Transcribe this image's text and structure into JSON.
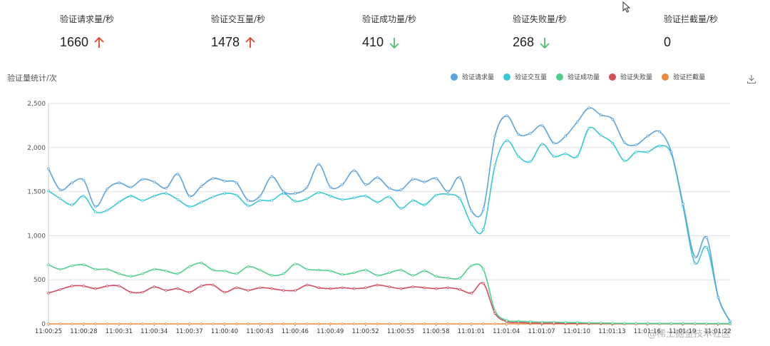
{
  "stats": [
    {
      "label": "验证请求量/秒",
      "value": "1660",
      "trend": "up"
    },
    {
      "label": "验证交互量/秒",
      "value": "1478",
      "trend": "up"
    },
    {
      "label": "验证成功量/秒",
      "value": "410",
      "trend": "down"
    },
    {
      "label": "验证失败量/秒",
      "value": "268",
      "trend": "down"
    },
    {
      "label": "验证拦截量/秒",
      "value": "0",
      "trend": "none"
    }
  ],
  "colors": {
    "up": "#e0452b",
    "down": "#4cc26a"
  },
  "icons": {
    "download": "download-icon",
    "cursor": "cursor-icon",
    "up": "arrow-up-icon",
    "down": "arrow-down-icon"
  },
  "watermark": "@稀土掘金技术社区",
  "chart_data": {
    "type": "line",
    "title": "验证量统计/次",
    "ylim": [
      0,
      2500
    ],
    "yticks": [
      "0",
      "500",
      "1,000",
      "1,500",
      "2,000",
      "2,500"
    ],
    "grid": true,
    "legend_position": "top-right",
    "xticks": [
      "11:00:25",
      "11:00:28",
      "11:00:31",
      "11:00:34",
      "11:00:37",
      "11:00:40",
      "11:00:43",
      "11:00:46",
      "11:00:49",
      "11:00:52",
      "11:00:55",
      "11:00:58",
      "11:01:01",
      "11:01:04",
      "11:01:07",
      "11:01:10",
      "11:01:13",
      "11:01:16",
      "11:01:19",
      "11:01:22"
    ],
    "x_start": "11:00:25",
    "x_end": "11:01:22",
    "series": [
      {
        "name": "验证请求量",
        "color": "#5ba4e0",
        "values": [
          1760,
          1520,
          1600,
          1630,
          1330,
          1530,
          1600,
          1550,
          1640,
          1610,
          1540,
          1700,
          1450,
          1560,
          1650,
          1620,
          1600,
          1400,
          1450,
          1670,
          1500,
          1480,
          1550,
          1810,
          1550,
          1580,
          1740,
          1580,
          1660,
          1540,
          1520,
          1640,
          1610,
          1650,
          1500,
          1660,
          1280,
          1300,
          2130,
          2360,
          2150,
          2160,
          2250,
          2050,
          2130,
          2290,
          2450,
          2370,
          2320,
          2060,
          2030,
          2130,
          2180,
          1950,
          1360,
          760,
          980,
          300,
          30
        ]
      },
      {
        "name": "验证交互量",
        "color": "#36c8d6",
        "values": [
          1510,
          1420,
          1350,
          1450,
          1270,
          1290,
          1380,
          1450,
          1400,
          1450,
          1480,
          1410,
          1330,
          1380,
          1440,
          1480,
          1460,
          1340,
          1400,
          1400,
          1480,
          1390,
          1420,
          1490,
          1450,
          1410,
          1430,
          1450,
          1380,
          1440,
          1310,
          1400,
          1350,
          1460,
          1470,
          1420,
          1130,
          1070,
          1800,
          2080,
          1900,
          1840,
          2040,
          1900,
          1930,
          1900,
          2220,
          2140,
          2050,
          1850,
          1950,
          1950,
          2020,
          1930,
          1330,
          690,
          870,
          300,
          20
        ]
      },
      {
        "name": "验证成功量",
        "color": "#4fcf8c",
        "values": [
          670,
          620,
          660,
          670,
          620,
          620,
          570,
          540,
          570,
          620,
          600,
          570,
          650,
          690,
          610,
          600,
          570,
          650,
          610,
          550,
          570,
          680,
          620,
          610,
          600,
          560,
          580,
          610,
          550,
          580,
          610,
          550,
          600,
          540,
          520,
          520,
          660,
          620,
          150,
          40,
          30,
          25,
          20,
          20,
          15,
          15,
          10,
          10,
          8,
          6,
          5,
          5,
          5,
          5,
          5,
          5,
          4,
          4,
          3
        ]
      },
      {
        "name": "验证失败量",
        "color": "#d24d5c",
        "values": [
          350,
          390,
          430,
          430,
          400,
          430,
          430,
          360,
          360,
          420,
          380,
          400,
          360,
          430,
          440,
          360,
          410,
          380,
          410,
          400,
          380,
          380,
          440,
          410,
          400,
          410,
          400,
          410,
          440,
          420,
          400,
          420,
          410,
          400,
          410,
          390,
          350,
          460,
          120,
          25,
          15,
          10,
          8,
          8,
          6,
          5,
          5,
          4,
          4,
          3,
          3,
          3,
          3,
          3,
          3,
          3,
          2,
          2,
          2
        ]
      },
      {
        "name": "验证拦截量",
        "color": "#ee8a3c",
        "values": [
          0,
          0,
          0,
          0,
          0,
          0,
          0,
          0,
          0,
          0,
          0,
          0,
          0,
          0,
          0,
          0,
          0,
          0,
          0,
          0,
          0,
          0,
          0,
          0,
          0,
          0,
          0,
          0,
          0,
          0,
          0,
          0,
          0,
          0,
          0,
          0,
          0,
          0,
          0,
          0,
          0,
          0,
          0,
          0,
          0,
          0,
          0,
          0,
          0,
          0,
          0,
          0,
          0,
          0,
          0,
          0,
          0,
          0,
          0
        ]
      }
    ]
  }
}
